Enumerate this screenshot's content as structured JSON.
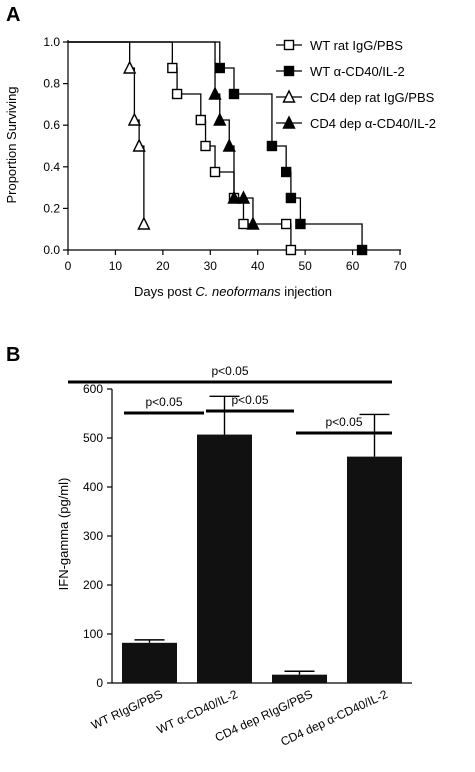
{
  "panels": {
    "a_letter": "A",
    "b_letter": "B"
  },
  "chart_data": [
    {
      "type": "line",
      "subtype": "step",
      "xlabel": "Days post C. neoformans injection",
      "xlabel_parts": {
        "before": "Days post ",
        "italic": "C. neoformans",
        "after": " injection"
      },
      "ylabel": "Proportion Surviving",
      "xlim": [
        0,
        70
      ],
      "ylim": [
        0,
        1.0
      ],
      "xticks": [
        0,
        10,
        20,
        30,
        40,
        50,
        60,
        70
      ],
      "yticks": [
        0.0,
        0.2,
        0.4,
        0.6,
        0.8,
        1.0
      ],
      "ytick_labels": [
        "0.0",
        "0.2",
        "0.4",
        "0.6",
        "0.8",
        "1.0"
      ],
      "grid": false,
      "legend_position": "top-right",
      "series": [
        {
          "name": "WT rat IgG/PBS",
          "marker": "open-square",
          "x": [
            0,
            22,
            23,
            28,
            29,
            31,
            35,
            37,
            46,
            47
          ],
          "y": [
            1.0,
            0.875,
            0.75,
            0.625,
            0.5,
            0.375,
            0.25,
            0.125,
            0.125,
            0.0
          ]
        },
        {
          "name": "WT α-CD40/IL-2",
          "marker": "filled-square",
          "x": [
            0,
            32,
            35,
            43,
            46,
            47,
            49,
            62
          ],
          "y": [
            1.0,
            0.875,
            0.75,
            0.5,
            0.375,
            0.25,
            0.125,
            0.0
          ]
        },
        {
          "name": "CD4 dep rat IgG/PBS",
          "marker": "open-triangle",
          "x": [
            0,
            13,
            14,
            15,
            16
          ],
          "y": [
            1.0,
            0.875,
            0.625,
            0.5,
            0.125
          ]
        },
        {
          "name": "CD4 dep α-CD40/IL-2",
          "marker": "filled-triangle",
          "x": [
            0,
            31,
            32,
            34,
            35,
            37,
            39
          ],
          "y": [
            1.0,
            0.75,
            0.625,
            0.5,
            0.25,
            0.25,
            0.125
          ]
        }
      ]
    },
    {
      "type": "bar",
      "ylabel": "IFN-gamma (pg/ml)",
      "ylim": [
        0,
        600
      ],
      "yticks": [
        0,
        100,
        200,
        300,
        400,
        500,
        600
      ],
      "grid": false,
      "categories": [
        "WT RIgG/PBS",
        "WT α-CD40/IL-2",
        "CD4 dep RIgG/PBS",
        "CD4 dep α-CD40/IL-2"
      ],
      "values": [
        82,
        507,
        17,
        462
      ],
      "errors": [
        6,
        78,
        7,
        86
      ],
      "bar_color": "#111111",
      "significance": [
        {
          "from": 0,
          "to": 3,
          "label": "p<0.05"
        },
        {
          "from": 0,
          "to": 1,
          "label": "p<0.05"
        },
        {
          "from": 1,
          "to": 2,
          "label": "p<0.05"
        },
        {
          "from": 2,
          "to": 3,
          "label": "p<0.05"
        }
      ]
    }
  ]
}
